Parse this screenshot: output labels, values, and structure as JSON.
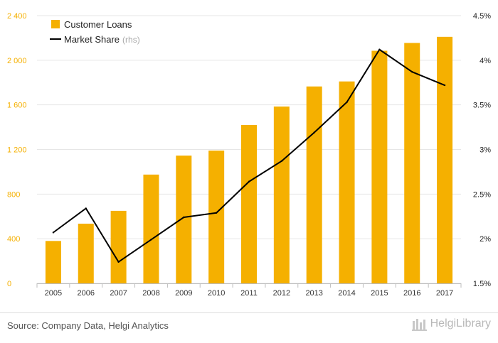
{
  "chart_data": {
    "type": "bar",
    "categories": [
      "2005",
      "2006",
      "2007",
      "2008",
      "2009",
      "2010",
      "2011",
      "2012",
      "2013",
      "2014",
      "2015",
      "2016",
      "2017"
    ],
    "series": [
      {
        "name": "Customer Loans",
        "type": "bar",
        "axis": "left",
        "color": "#F5B000",
        "values": [
          380,
          535,
          650,
          975,
          1145,
          1190,
          1420,
          1585,
          1765,
          1810,
          2085,
          2155,
          2210
        ]
      },
      {
        "name": "Market Share",
        "name_suffix": "(rhs)",
        "type": "line",
        "axis": "right",
        "color": "#000000",
        "values": [
          2.07,
          2.34,
          1.74,
          1.99,
          2.24,
          2.29,
          2.64,
          2.87,
          3.19,
          3.53,
          4.12,
          3.87,
          3.72
        ]
      }
    ],
    "y_left": {
      "min": 0,
      "max": 2400,
      "ticks": [
        0,
        400,
        800,
        1200,
        1600,
        2000,
        2400
      ],
      "tick_labels": [
        "0",
        "400",
        "800",
        "1 200",
        "1 600",
        "2 000",
        "2 400"
      ],
      "tick_color": "#F5B000"
    },
    "y_right": {
      "min": 1.5,
      "max": 4.5,
      "ticks": [
        1.5,
        2,
        2.5,
        3,
        3.5,
        4,
        4.5
      ],
      "tick_labels": [
        "1.5%",
        "2%",
        "2.5%",
        "3%",
        "3.5%",
        "4%",
        "4.5%"
      ]
    },
    "grid": "horizontal",
    "legend_position": "top-left"
  },
  "footer": {
    "source": "Source: Company Data, Helgi Analytics",
    "brand": "HelgiLibrary"
  }
}
